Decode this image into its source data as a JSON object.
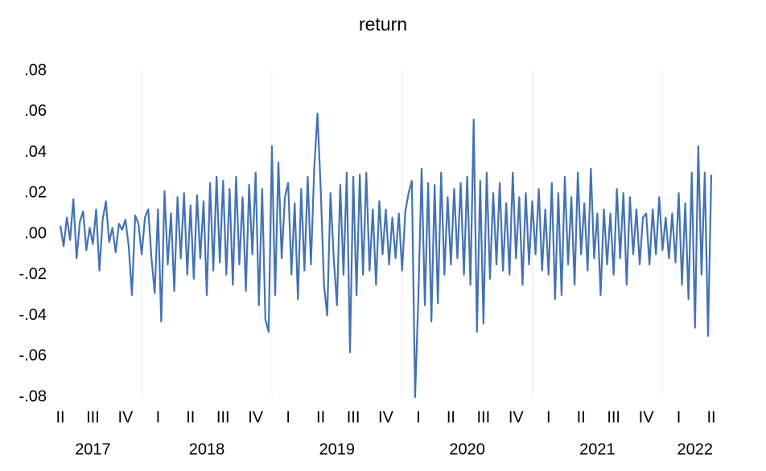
{
  "chart_data": {
    "type": "line",
    "title": "return",
    "ylim": [
      -0.08,
      0.08
    ],
    "yticks": [
      {
        "value": -0.08,
        "label": "-.08"
      },
      {
        "value": -0.06,
        "label": "-.06"
      },
      {
        "value": -0.04,
        "label": "-.04"
      },
      {
        "value": -0.02,
        "label": "-.02"
      },
      {
        "value": 0,
        "label": ".00"
      },
      {
        "value": 0.02,
        "label": ".02"
      },
      {
        "value": 0.04,
        "label": ".04"
      },
      {
        "value": 0.06,
        "label": ".06"
      },
      {
        "value": 0.08,
        "label": ".08"
      }
    ],
    "years": [
      "2017",
      "2018",
      "2019",
      "2020",
      "2021",
      "2022"
    ],
    "categories": [
      "II",
      null,
      null,
      null,
      null,
      null,
      null,
      null,
      null,
      null,
      "III",
      null,
      null,
      null,
      null,
      null,
      null,
      null,
      null,
      null,
      "IV",
      null,
      null,
      null,
      null,
      null,
      null,
      null,
      null,
      null,
      "I",
      null,
      null,
      null,
      null,
      null,
      null,
      null,
      null,
      null,
      "II",
      null,
      null,
      null,
      null,
      null,
      null,
      null,
      null,
      null,
      "III",
      null,
      null,
      null,
      null,
      null,
      null,
      null,
      null,
      null,
      "IV",
      null,
      null,
      null,
      null,
      null,
      null,
      null,
      null,
      null,
      "I",
      null,
      null,
      null,
      null,
      null,
      null,
      null,
      null,
      null,
      "II",
      null,
      null,
      null,
      null,
      null,
      null,
      null,
      null,
      null,
      "III",
      null,
      null,
      null,
      null,
      null,
      null,
      null,
      null,
      null,
      "IV",
      null,
      null,
      null,
      null,
      null,
      null,
      null,
      null,
      null,
      "I",
      null,
      null,
      null,
      null,
      null,
      null,
      null,
      null,
      null,
      "II",
      null,
      null,
      null,
      null,
      null,
      null,
      null,
      null,
      null,
      "III",
      null,
      null,
      null,
      null,
      null,
      null,
      null,
      null,
      null,
      "IV",
      null,
      null,
      null,
      null,
      null,
      null,
      null,
      null,
      null,
      "I",
      null,
      null,
      null,
      null,
      null,
      null,
      null,
      null,
      null,
      "II",
      null,
      null,
      null,
      null,
      null,
      null,
      null,
      null,
      null,
      "III",
      null,
      null,
      null,
      null,
      null,
      null,
      null,
      null,
      null,
      "IV",
      null,
      null,
      null,
      null,
      null,
      null,
      null,
      null,
      null,
      "I",
      null,
      null,
      null,
      null,
      null,
      null,
      null,
      null,
      null,
      "II"
    ],
    "series": [
      {
        "name": "return",
        "color": "#4472b4",
        "values": [
          0.004,
          -0.006,
          0.008,
          -0.003,
          0.017,
          -0.012,
          0.006,
          0.011,
          -0.008,
          0.003,
          -0.005,
          0.012,
          -0.018,
          0.007,
          0.016,
          -0.004,
          0.003,
          -0.009,
          0.005,
          0.002,
          0.007,
          -0.006,
          -0.03,
          0.009,
          0.005,
          -0.01,
          0.008,
          0.012,
          -0.012,
          -0.029,
          0.012,
          -0.043,
          0.021,
          -0.015,
          0.01,
          -0.028,
          0.018,
          -0.012,
          0.02,
          -0.02,
          0.014,
          -0.022,
          0.019,
          -0.012,
          0.016,
          -0.03,
          0.025,
          -0.018,
          0.028,
          -0.014,
          0.026,
          -0.02,
          0.022,
          -0.025,
          0.028,
          -0.015,
          0.018,
          -0.028,
          0.024,
          -0.01,
          0.03,
          -0.035,
          0.022,
          -0.042,
          -0.048,
          0.043,
          -0.03,
          0.035,
          -0.012,
          0.018,
          0.025,
          -0.02,
          0.015,
          -0.032,
          0.022,
          -0.018,
          0.028,
          -0.015,
          0.032,
          0.059,
          0.022,
          -0.025,
          -0.04,
          0.02,
          -0.012,
          -0.035,
          0.024,
          -0.02,
          0.03,
          -0.058,
          0.028,
          -0.03,
          0.029,
          -0.02,
          0.03,
          -0.018,
          0.012,
          -0.025,
          0.016,
          -0.01,
          0.012,
          -0.015,
          0.008,
          -0.012,
          0.01,
          -0.018,
          0.011,
          0.02,
          0.026,
          -0.08,
          -0.031,
          0.032,
          -0.035,
          0.025,
          -0.043,
          0.024,
          -0.034,
          0.03,
          -0.02,
          0.018,
          -0.015,
          0.022,
          -0.012,
          0.025,
          -0.02,
          0.028,
          -0.025,
          0.056,
          -0.048,
          0.026,
          -0.044,
          0.03,
          -0.022,
          0.02,
          -0.015,
          0.025,
          -0.018,
          0.015,
          -0.02,
          0.03,
          -0.012,
          0.018,
          -0.025,
          0.02,
          -0.015,
          0.016,
          -0.01,
          0.022,
          -0.018,
          0.012,
          -0.02,
          0.025,
          -0.032,
          0.02,
          -0.03,
          0.028,
          -0.015,
          0.018,
          -0.025,
          0.03,
          -0.01,
          0.015,
          -0.018,
          0.032,
          -0.012,
          0.01,
          -0.03,
          0.012,
          -0.015,
          0.01,
          -0.02,
          0.022,
          -0.012,
          0.02,
          -0.025,
          0.018,
          -0.01,
          0.012,
          -0.015,
          0.008,
          0.01,
          -0.015,
          0.012,
          -0.01,
          0.018,
          -0.008,
          0.008,
          -0.012,
          0.01,
          -0.014,
          0.02,
          -0.025,
          0.015,
          -0.032,
          0.03,
          -0.046,
          0.043,
          -0.02,
          0.03,
          -0.05,
          0.029
        ]
      }
    ]
  }
}
